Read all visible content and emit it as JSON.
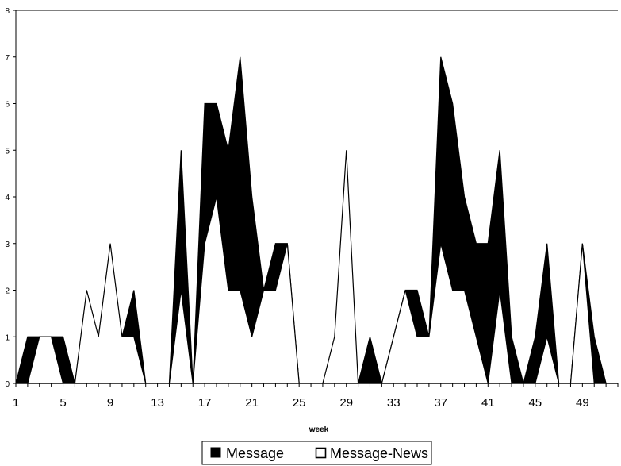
{
  "chart_data": {
    "type": "area",
    "title": "",
    "xlabel": "week",
    "ylabel": "",
    "ylim": [
      0,
      8
    ],
    "xlim": [
      1,
      52
    ],
    "yticks": [
      "0",
      "1",
      "2",
      "3",
      "4",
      "5",
      "6",
      "7",
      "8"
    ],
    "xticks": [
      "1",
      "5",
      "9",
      "13",
      "17",
      "21",
      "25",
      "29",
      "33",
      "37",
      "41",
      "45",
      "49"
    ],
    "x": [
      1,
      2,
      3,
      4,
      5,
      6,
      7,
      8,
      9,
      10,
      11,
      12,
      13,
      14,
      15,
      16,
      17,
      18,
      19,
      20,
      21,
      22,
      23,
      24,
      25,
      26,
      27,
      28,
      29,
      30,
      31,
      32,
      33,
      34,
      35,
      36,
      37,
      38,
      39,
      40,
      41,
      42,
      43,
      44,
      45,
      46,
      47,
      48,
      49,
      50,
      51,
      52
    ],
    "series": [
      {
        "name": "Message",
        "color": "#000000",
        "values": [
          0,
          1,
          1,
          1,
          1,
          0,
          0,
          0,
          0,
          1,
          2,
          0,
          0,
          0,
          5,
          0,
          6,
          6,
          5,
          7,
          4,
          2,
          3,
          3,
          0,
          0,
          0,
          0,
          0,
          0,
          1,
          0,
          1,
          2,
          2,
          1,
          7,
          6,
          4,
          3,
          3,
          5,
          1,
          0,
          1,
          3,
          0,
          0,
          3,
          1,
          0,
          0
        ]
      },
      {
        "name": "Message-News",
        "color": "#ffffff",
        "values": [
          0,
          0,
          1,
          1,
          0,
          0,
          2,
          1,
          3,
          1,
          1,
          0,
          0,
          0,
          2,
          0,
          3,
          4,
          2,
          2,
          1,
          2,
          2,
          3,
          0,
          0,
          0,
          1,
          5,
          0,
          0,
          0,
          1,
          2,
          1,
          1,
          3,
          2,
          2,
          1,
          0,
          2,
          0,
          0,
          0,
          1,
          0,
          0,
          3,
          0,
          0,
          0
        ]
      }
    ],
    "legend": "bottom-center",
    "grid": false
  }
}
